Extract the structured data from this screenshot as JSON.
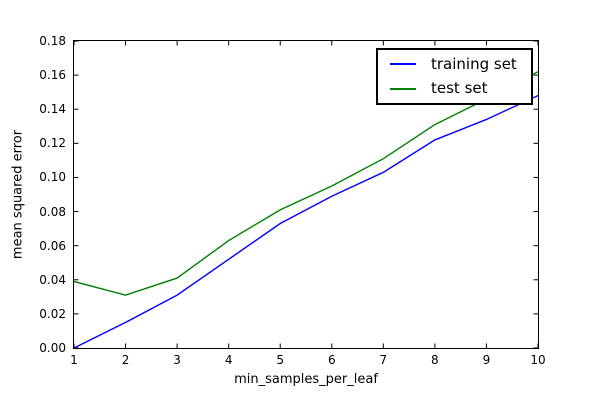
{
  "figure": {
    "background": "#ffffff",
    "text_color": "#000000"
  },
  "chart_data": {
    "type": "line",
    "title": "",
    "xlabel": "min_samples_per_leaf",
    "ylabel": "mean squared error",
    "x": [
      1,
      2,
      3,
      4,
      5,
      6,
      7,
      8,
      9,
      10
    ],
    "series": [
      {
        "name": "training set",
        "color": "#0000ff",
        "values": [
          0.0,
          0.015,
          0.031,
          0.052,
          0.073,
          0.089,
          0.103,
          0.122,
          0.134,
          0.148
        ]
      },
      {
        "name": "test set",
        "color": "#008000",
        "values": [
          0.039,
          0.031,
          0.041,
          0.063,
          0.081,
          0.095,
          0.111,
          0.131,
          0.146,
          0.162
        ]
      }
    ],
    "xlim": [
      1,
      10
    ],
    "ylim": [
      0,
      0.18
    ],
    "xticks": [
      "1",
      "2",
      "3",
      "4",
      "5",
      "6",
      "7",
      "8",
      "9",
      "10"
    ],
    "yticks": [
      "0.00",
      "0.02",
      "0.04",
      "0.06",
      "0.08",
      "0.10",
      "0.12",
      "0.14",
      "0.16",
      "0.18"
    ],
    "grid": false,
    "legend_position": "upper right",
    "line_width": 1.4,
    "tick_length": 4.5
  }
}
